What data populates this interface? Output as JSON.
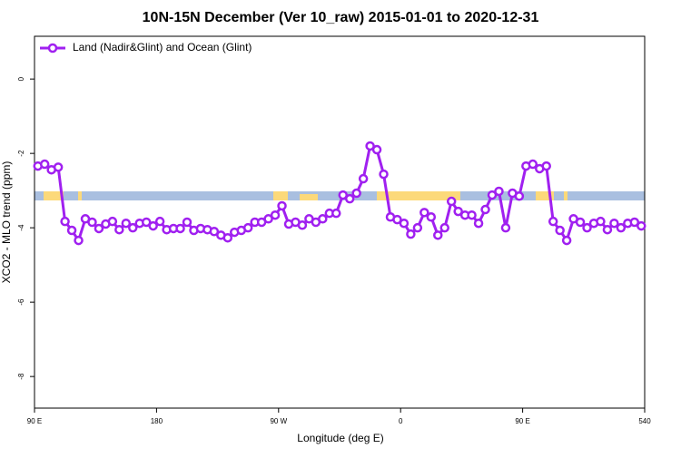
{
  "chart_data": {
    "type": "line",
    "title": "10N-15N December (Ver 10_raw)   2015-01-01 to 2020-12-31",
    "x_label": "Longitude (deg E)",
    "y_label": "XCO2 - MLO trend (ppm)",
    "x": [
      92.5,
      97.5,
      102.5,
      107.5,
      112.5,
      117.5,
      122.5,
      127.5,
      132.5,
      137.5,
      142.5,
      147.5,
      152.5,
      157.5,
      162.5,
      167.5,
      172.5,
      177.5,
      182.5,
      187.5,
      192.5,
      197.5,
      202.5,
      207.5,
      212.5,
      217.5,
      222.5,
      227.5,
      232.5,
      237.5,
      242.5,
      247.5,
      252.5,
      257.5,
      262.5,
      267.5,
      272.5,
      277.5,
      282.5,
      287.5,
      292.5,
      297.5,
      302.5,
      307.5,
      312.5,
      317.5,
      322.5,
      327.5,
      332.5,
      337.5,
      342.5,
      347.5,
      352.5,
      357.5,
      362.5,
      367.5,
      372.5,
      377.5,
      382.5,
      387.5,
      392.5,
      397.5,
      402.5,
      407.5,
      412.5,
      417.5,
      422.5,
      427.5,
      432.5,
      437.5,
      442.5,
      447.5,
      452.5,
      457.5,
      462.5,
      467.5,
      472.5,
      477.5,
      482.5,
      487.5,
      492.5,
      497.5,
      502.5,
      507.5,
      512.5,
      517.5,
      522.5,
      527.5,
      532.5,
      537.5
    ],
    "series": [
      {
        "name": "Land (Nadir&Glint) and Ocean (Glint)",
        "color": "#a020f0",
        "values": [
          -2.34,
          -2.29,
          -2.44,
          -2.37,
          -3.83,
          -4.07,
          -4.34,
          -3.76,
          -3.85,
          -4.02,
          -3.9,
          -3.83,
          -4.05,
          -3.88,
          -4.0,
          -3.88,
          -3.85,
          -3.95,
          -3.83,
          -4.05,
          -4.02,
          -4.02,
          -3.85,
          -4.07,
          -4.02,
          -4.05,
          -4.1,
          -4.2,
          -4.27,
          -4.12,
          -4.07,
          -4.0,
          -3.85,
          -3.85,
          -3.76,
          -3.66,
          -3.41,
          -3.9,
          -3.85,
          -3.93,
          -3.76,
          -3.85,
          -3.76,
          -3.61,
          -3.61,
          -3.12,
          -3.22,
          -3.07,
          -2.68,
          -1.8,
          -1.9,
          -2.56,
          -3.71,
          -3.78,
          -3.88,
          -4.17,
          -4.0,
          -3.59,
          -3.71,
          -4.2,
          -4.0,
          -3.29,
          -3.56,
          -3.66,
          -3.66,
          -3.88,
          -3.51,
          -3.12,
          -3.02,
          -4.0,
          -3.07,
          -3.15,
          -2.34,
          -2.29,
          -2.41,
          -2.34,
          -3.83,
          -4.07,
          -4.34,
          -3.76,
          -3.85,
          -4.0,
          -3.88,
          -3.83,
          -4.05,
          -3.88,
          -4.0,
          -3.88,
          -3.85,
          -3.95
        ]
      }
    ],
    "xlim": [
      90,
      540
    ],
    "xticks": [
      {
        "value": 90,
        "label": "90 E"
      },
      180,
      {
        "value": 270,
        "label": "90 W"
      },
      {
        "value": 360,
        "label": "0"
      },
      {
        "value": 450,
        "label": "90 E"
      },
      540
    ],
    "ylim": [
      -8.85,
      1.15
    ],
    "yticks": [
      0,
      -2,
      -4,
      -6,
      -8
    ],
    "legend": "top-left"
  }
}
